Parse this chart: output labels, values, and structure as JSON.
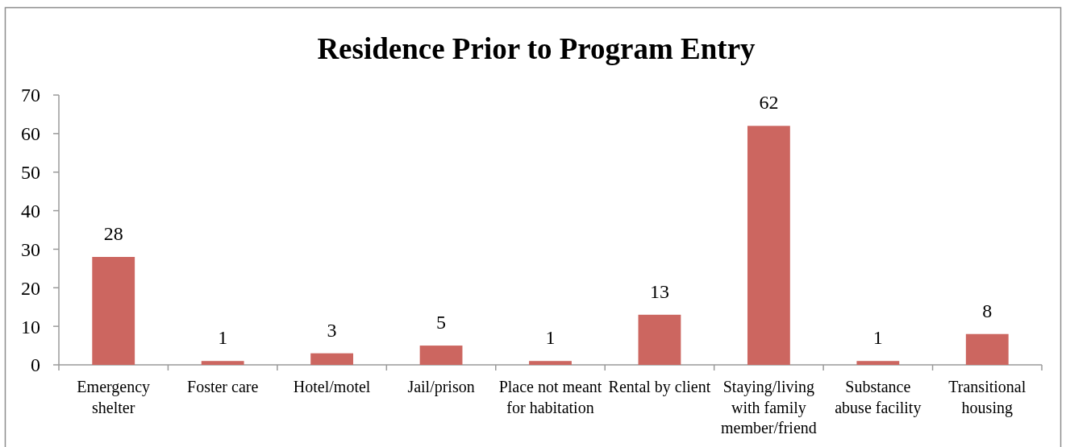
{
  "chart_data": {
    "type": "bar",
    "title": "Residence Prior to Program Entry",
    "categories": [
      "Emergency shelter",
      "Foster care",
      "Hotel/motel",
      "Jail/prison",
      "Place not meant for habitation",
      "Rental by client",
      "Staying/living with family member/friend",
      "Substance abuse facility",
      "Transitional housing"
    ],
    "values": [
      28,
      1,
      3,
      5,
      1,
      13,
      62,
      1,
      8
    ],
    "color": "#cc6660",
    "ylim": [
      0,
      70
    ],
    "yticks": [
      0,
      10,
      20,
      30,
      40,
      50,
      60,
      70
    ],
    "data_labels": true
  }
}
